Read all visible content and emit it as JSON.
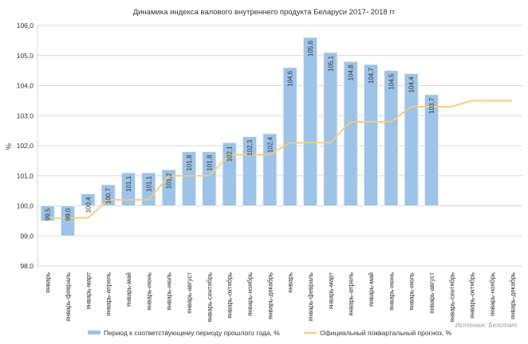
{
  "chart_data": {
    "type": "bar",
    "title": "Динамика индекса валового внутреннего продукта Беларуси 2017- 2018 гг",
    "xlabel": "",
    "ylabel": "%",
    "ylim": [
      98,
      106
    ],
    "yticks": [
      "98,0",
      "99,0",
      "100,0",
      "101,0",
      "102,0",
      "103,0",
      "104,0",
      "105,0",
      "106,0"
    ],
    "grid": true,
    "legend_position": "bottom",
    "categories": [
      "январь",
      "январь-февраль",
      "январь-март",
      "январь-апрель",
      "январь-май",
      "январь-июнь",
      "январь-июль",
      "январь-август",
      "январь-сентябрь",
      "январь-октябрь",
      "январь-ноябрь",
      "январь-декабрь",
      "январь",
      "январь-февраль",
      "январь-март",
      "январь-апрель",
      "январь-май",
      "январь-июнь",
      "январь-июль",
      "январь-август",
      "январь-сентябрь",
      "январь-октябрь",
      "январь-ноябрь",
      "январь-декабрь"
    ],
    "series": [
      {
        "name": "Период к соответствующему периоду прошлого года, %",
        "type": "bar",
        "color": "#9dc3e6",
        "values": [
          99.5,
          99.0,
          100.4,
          100.7,
          101.1,
          101.1,
          101.2,
          101.8,
          101.8,
          102.1,
          102.3,
          102.4,
          104.6,
          105.6,
          105.1,
          104.8,
          104.7,
          104.5,
          104.4,
          103.7,
          null,
          null,
          null,
          null
        ],
        "labels": [
          "99,5",
          "99,0",
          "100,4",
          "100,7",
          "101,1",
          "101,1",
          "101,2",
          "101,8",
          "101,8",
          "102,1",
          "102,3",
          "102,4",
          "104,6",
          "105,6",
          "105,1",
          "104,8",
          "104,7",
          "104,5",
          "104,4",
          "103,7",
          null,
          null,
          null,
          null
        ]
      },
      {
        "name": "Официальный поквартальный прогноз, %",
        "type": "line",
        "color": "#fcc978",
        "values": [
          99.6,
          99.6,
          99.6,
          100.2,
          100.2,
          100.2,
          101.0,
          101.0,
          101.0,
          101.7,
          101.7,
          101.7,
          102.1,
          102.1,
          102.1,
          102.8,
          102.8,
          102.8,
          103.3,
          103.3,
          103.3,
          103.5,
          103.5,
          103.5
        ]
      }
    ],
    "source": "Источник: Белстат"
  }
}
